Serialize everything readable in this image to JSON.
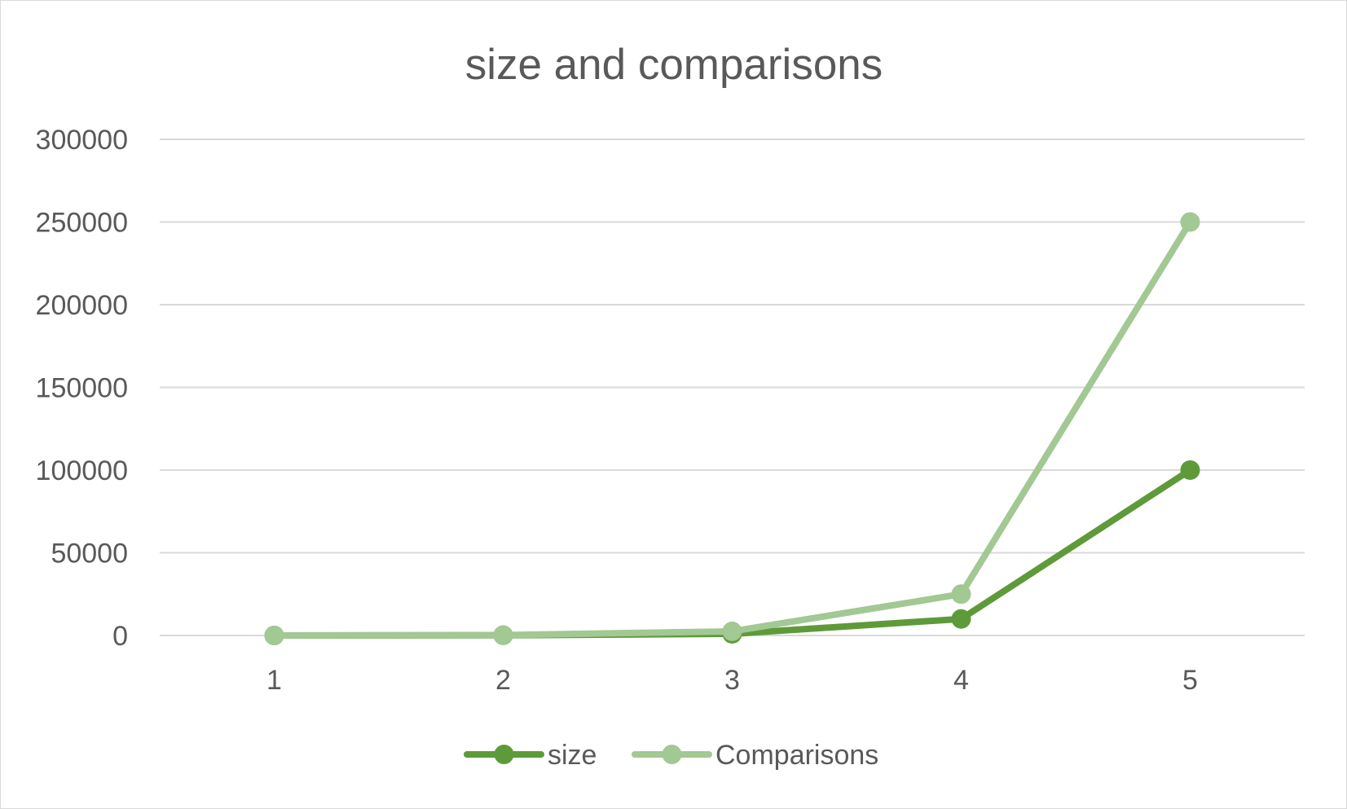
{
  "chart_data": {
    "type": "line",
    "title": "size and comparisons",
    "xlabel": "",
    "ylabel": "",
    "categories": [
      "1",
      "2",
      "3",
      "4",
      "5"
    ],
    "ylim": [
      0,
      300000
    ],
    "yticks": [
      0,
      50000,
      100000,
      150000,
      200000,
      250000,
      300000
    ],
    "ytick_labels": [
      "0",
      "50000",
      "100000",
      "150000",
      "200000",
      "250000",
      "300000"
    ],
    "grid": true,
    "legend_position": "bottom",
    "series": [
      {
        "name": "size",
        "color": "#5e9a3a",
        "values": [
          10,
          100,
          1000,
          10000,
          100000
        ]
      },
      {
        "name": "Comparisons",
        "color": "#a2c893",
        "values": [
          25,
          250,
          2500,
          25000,
          250000
        ]
      }
    ]
  }
}
